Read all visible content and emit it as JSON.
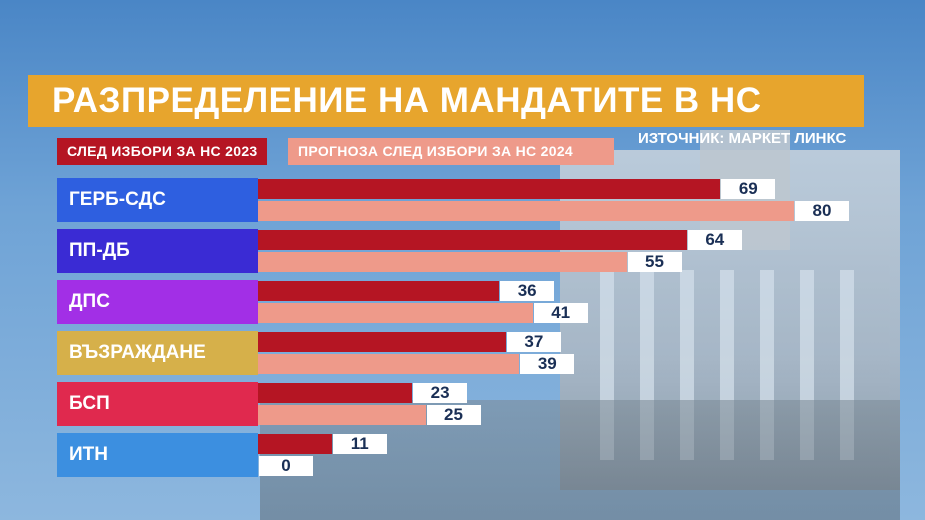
{
  "title": "РАЗПРЕДЕЛЕНИЕ НА МАНДАТИТЕ В НС",
  "source": "ИЗТОЧНИК: МАРКЕТ ЛИНКС",
  "legend": {
    "y2023": "СЛЕД ИЗБОРИ ЗА НС 2023",
    "y2024": "ПРОГНОЗА СЛЕД ИЗБОРИ ЗА НС 2024"
  },
  "colors": {
    "y2023": "#b51523",
    "y2024": "#ee9a8a",
    "title_bg": "#e7a52d"
  },
  "chart_data": {
    "type": "bar",
    "orientation": "horizontal",
    "categories": [
      "ГЕРБ-СДС",
      "ПП-ДБ",
      "ДПС",
      "ВЪЗРАЖДАНЕ",
      "БСП",
      "ИТН"
    ],
    "category_colors": [
      "#2e5fe0",
      "#3a2bd4",
      "#a22fe6",
      "#d6b04a",
      "#e0294e",
      "#3c8fe0"
    ],
    "series": [
      {
        "name": "СЛЕД ИЗБОРИ ЗА НС 2023",
        "values": [
          69,
          64,
          36,
          37,
          23,
          11
        ]
      },
      {
        "name": "ПРОГНОЗА СЛЕД ИЗБОРИ ЗА НС 2024",
        "values": [
          80,
          55,
          41,
          39,
          25,
          0
        ]
      }
    ],
    "xlim": [
      0,
      85
    ],
    "title": "РАЗПРЕДЕЛЕНИЕ НА МАНДАТИТЕ В НС",
    "legend": "top-left",
    "grid": false
  }
}
